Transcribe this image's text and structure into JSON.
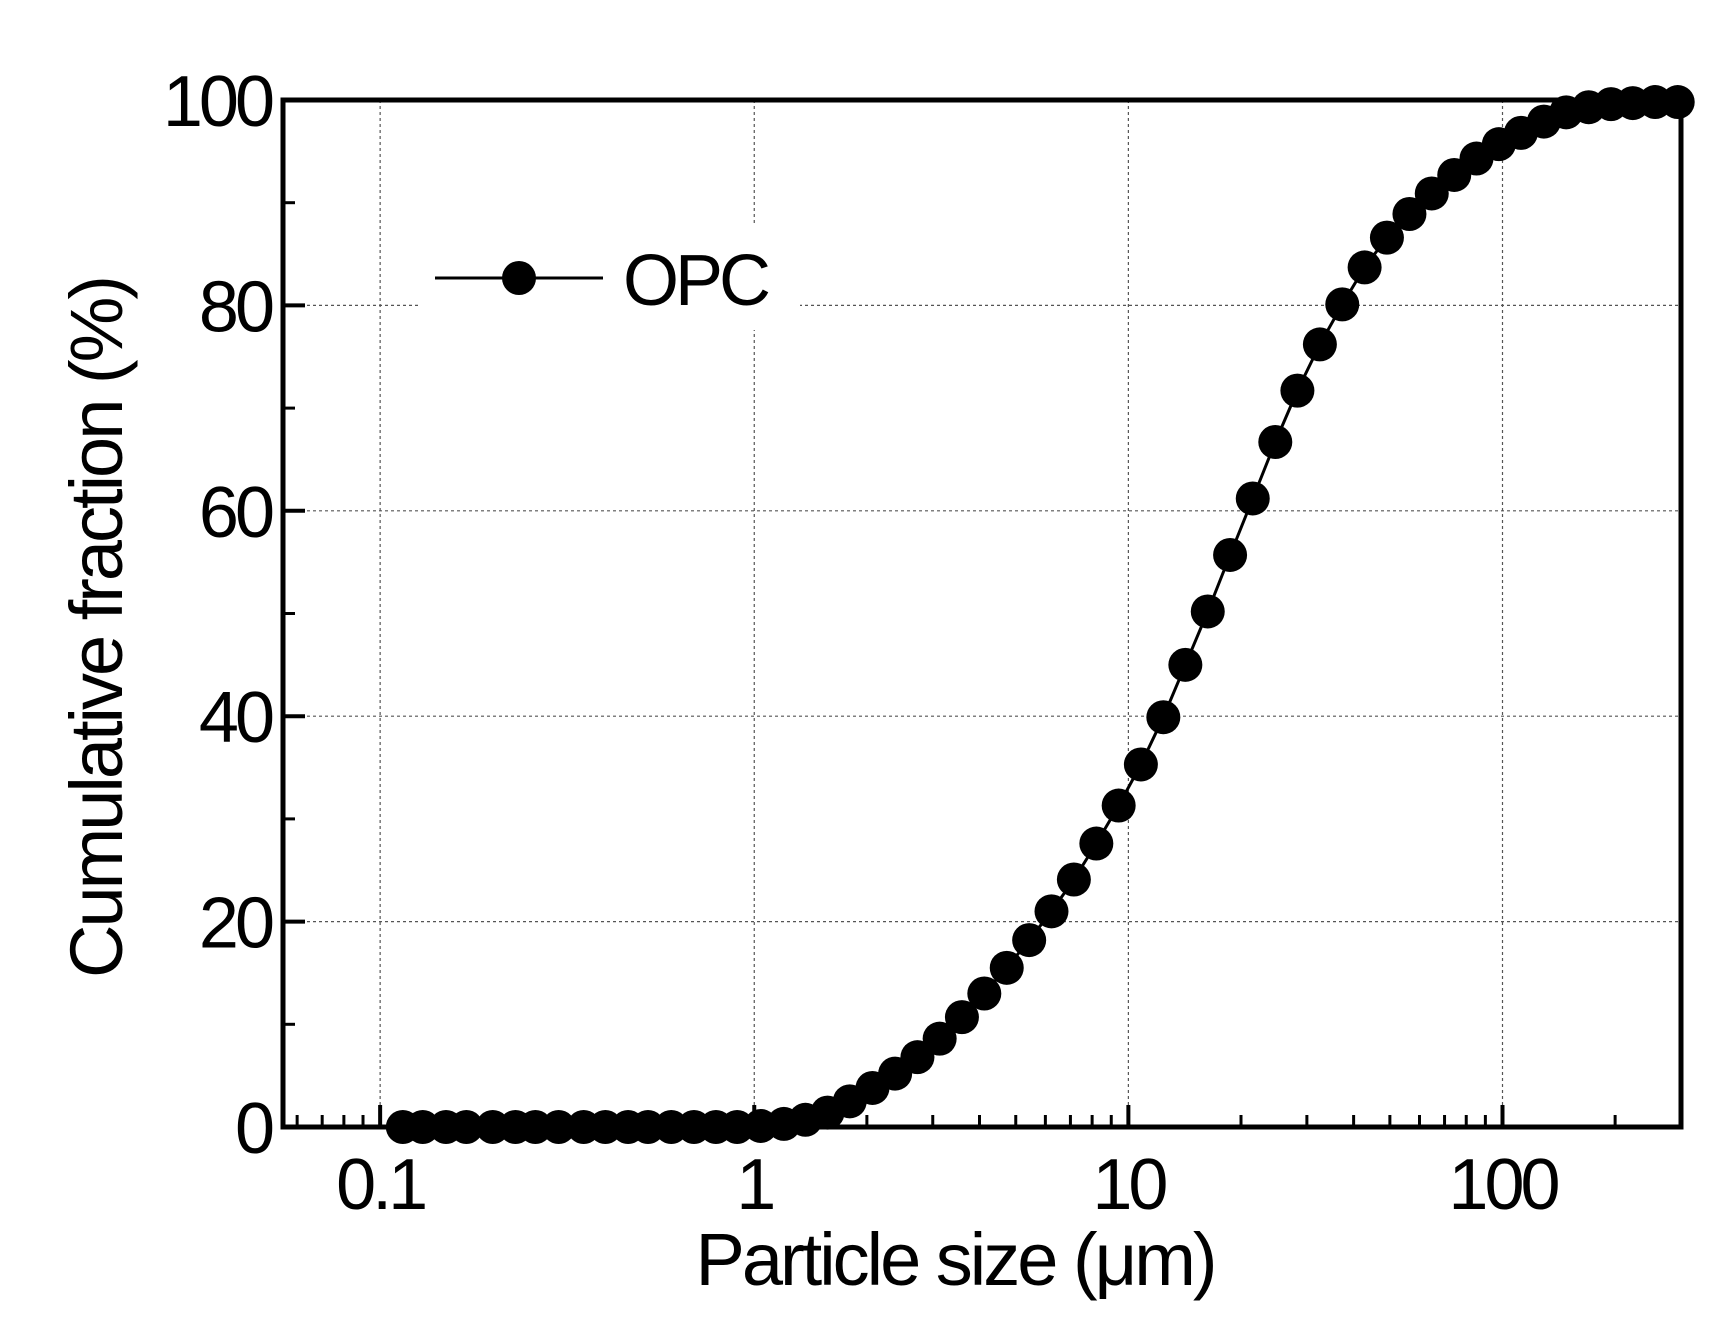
{
  "chart_data": {
    "type": "line",
    "xscale": "log",
    "xlabel": "Particle size (μm)",
    "ylabel": "Cumulative fraction (%)",
    "xlim": [
      0.055,
      300
    ],
    "ylim": [
      0,
      100
    ],
    "grid": true,
    "legend_position": "top-left",
    "x_ticks": [
      0.1,
      1,
      10,
      100
    ],
    "x_tick_labels": [
      "0.1",
      "1",
      "10",
      "100"
    ],
    "y_ticks": [
      0,
      20,
      40,
      60,
      80,
      100
    ],
    "y_tick_labels": [
      "0",
      "20",
      "40",
      "60",
      "80",
      "100"
    ],
    "series": [
      {
        "name": "OPC",
        "marker": "circle",
        "color": "#000000",
        "x": [
          0.115,
          0.13,
          0.15,
          0.17,
          0.2,
          0.23,
          0.26,
          0.3,
          0.35,
          0.4,
          0.46,
          0.52,
          0.6,
          0.69,
          0.79,
          0.9,
          1.04,
          1.2,
          1.37,
          1.57,
          1.8,
          2.07,
          2.38,
          2.73,
          3.13,
          3.59,
          4.12,
          4.73,
          5.43,
          6.23,
          7.15,
          8.21,
          9.42,
          10.8,
          12.4,
          14.2,
          16.3,
          18.7,
          21.5,
          24.7,
          28.3,
          32.5,
          37.3,
          42.8,
          49.1,
          56.4,
          64.7,
          74.3,
          85.2,
          97.8,
          112,
          129,
          148,
          170,
          195,
          223,
          256,
          294
        ],
        "values": [
          0,
          0,
          0,
          0,
          0,
          0,
          0,
          0,
          0,
          0,
          0,
          0,
          0,
          0,
          0,
          0,
          0.1,
          0.3,
          0.7,
          1.4,
          2.5,
          3.8,
          5.2,
          6.8,
          8.6,
          10.7,
          13,
          15.5,
          18.2,
          21,
          24.1,
          27.6,
          31.3,
          35.3,
          39.9,
          45,
          50.2,
          55.7,
          61.2,
          66.7,
          71.7,
          76.2,
          80.1,
          83.7,
          86.6,
          88.9,
          90.9,
          92.7,
          94.3,
          95.7,
          96.8,
          97.9,
          98.8,
          99.3,
          99.6,
          99.7,
          99.8,
          99.8
        ]
      }
    ]
  }
}
